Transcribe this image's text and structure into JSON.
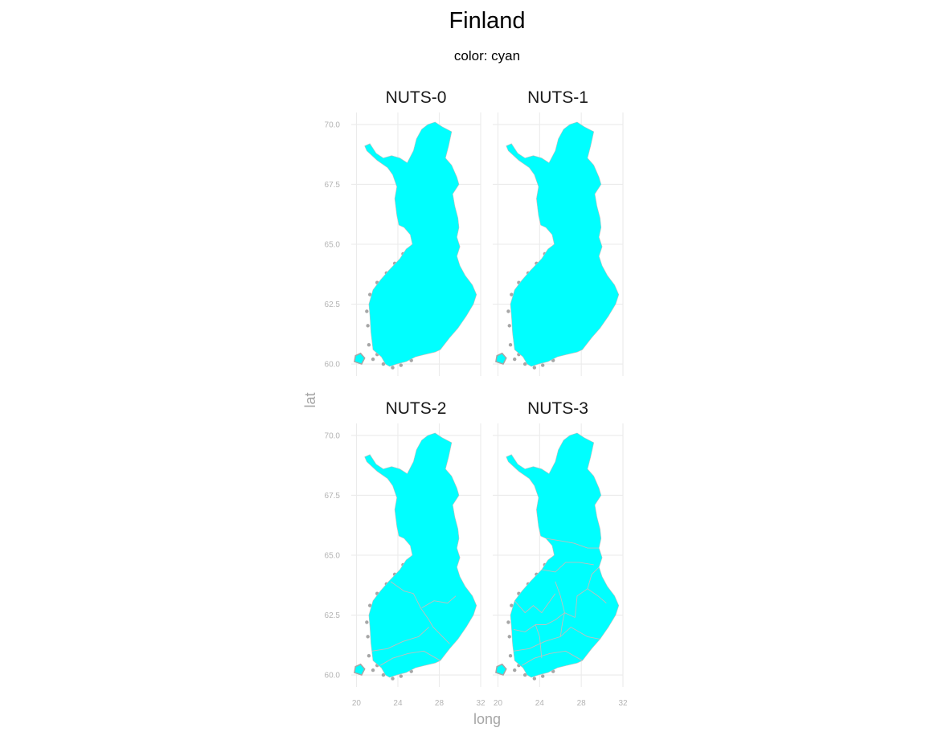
{
  "title": "Finland",
  "subtitle": "color: cyan",
  "colors": {
    "fill": "#00ffff",
    "border": "#bfbfbf",
    "outside": "#a6a6a6",
    "grid": "#ebebeb"
  },
  "chart_data": {
    "type": "map",
    "region": "Finland",
    "xlabel": "long",
    "ylabel": "lat",
    "xlim": [
      19.5,
      32.0
    ],
    "ylim": [
      59.5,
      70.5
    ],
    "x_ticks": [
      20,
      24,
      28,
      32
    ],
    "x_tick_labels": [
      "20",
      "24",
      "28",
      "32"
    ],
    "y_ticks": [
      60.0,
      62.5,
      65.0,
      67.5,
      70.0
    ],
    "y_tick_labels": [
      "60.0",
      "62.5",
      "65.0",
      "67.5",
      "70.0"
    ],
    "grid": true,
    "panels": [
      {
        "label": "NUTS-0",
        "level": 0
      },
      {
        "label": "NUTS-1",
        "level": 1
      },
      {
        "label": "NUTS-2",
        "level": 2
      },
      {
        "label": "NUTS-3",
        "level": 3
      }
    ]
  }
}
